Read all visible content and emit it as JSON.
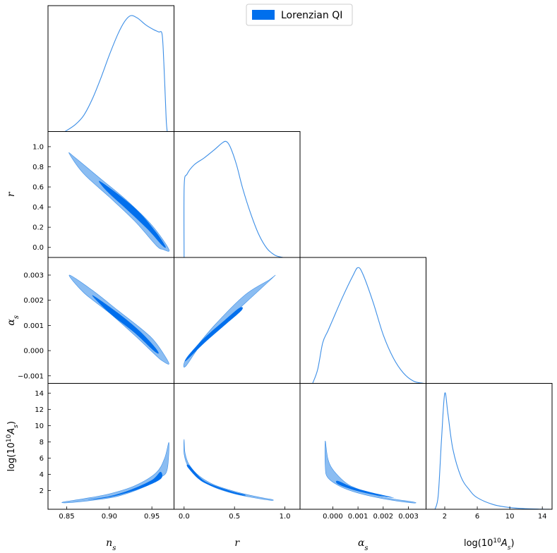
{
  "legend": {
    "label": "Lorenzian QI",
    "color": "#006FED",
    "location": "upper center"
  },
  "colors": {
    "line": "#3C8EE6",
    "contour_outer": "#8BBDF2",
    "contour_inner": "#006FED",
    "frame": "#000000"
  },
  "parameters": [
    {
      "key": "ns",
      "label_main": "n",
      "label_sub": "s"
    },
    {
      "key": "r",
      "label_main": "r",
      "label_sub": ""
    },
    {
      "key": "as",
      "label_main": "α",
      "label_sub": "s"
    },
    {
      "key": "lnA",
      "label_pre": "log(10",
      "label_sup": "10",
      "label_mid": "A",
      "label_sub": "s",
      "label_post": ")"
    }
  ],
  "chart_data": {
    "type": "triangle",
    "ranges": {
      "ns": [
        0.828,
        0.976
      ],
      "r": [
        -0.1,
        1.15
      ],
      "as": [
        -0.0013,
        0.0037
      ],
      "lnA": [
        -0.3,
        15.2
      ]
    },
    "ticks": {
      "ns": {
        "values": [
          0.85,
          0.9,
          0.95
        ],
        "labels": [
          "0.85",
          "0.90",
          "0.95"
        ]
      },
      "r": {
        "values": [
          0.0,
          0.5,
          1.0
        ],
        "labels": [
          "0.0",
          "0.5",
          "1.0"
        ]
      },
      "r_y": {
        "values": [
          0.0,
          0.2,
          0.4,
          0.6,
          0.8,
          1.0
        ],
        "labels": [
          "0.0",
          "0.2",
          "0.4",
          "0.6",
          "0.8",
          "1.0"
        ]
      },
      "as": {
        "values": [
          0.0,
          0.001,
          0.002,
          0.003
        ],
        "labels": [
          "0.000",
          "0.001",
          "0.002",
          "0.003"
        ]
      },
      "as_y": {
        "values": [
          -0.001,
          0.0,
          0.001,
          0.002,
          0.003
        ],
        "labels": [
          "−0.001",
          "0.000",
          "0.001",
          "0.002",
          "0.003"
        ]
      },
      "lnA": {
        "values": [
          2,
          6,
          10,
          14
        ],
        "labels": [
          "2",
          "6",
          "10",
          "14"
        ]
      },
      "lnA_y": {
        "values": [
          2,
          4,
          6,
          8,
          10,
          12,
          14
        ],
        "labels": [
          "2",
          "4",
          "6",
          "8",
          "10",
          "12",
          "14"
        ]
      }
    },
    "marginals": {
      "ns": [
        [
          0.848,
          0
        ],
        [
          0.86,
          0.06
        ],
        [
          0.87,
          0.14
        ],
        [
          0.88,
          0.28
        ],
        [
          0.89,
          0.46
        ],
        [
          0.9,
          0.66
        ],
        [
          0.91,
          0.84
        ],
        [
          0.918,
          0.95
        ],
        [
          0.925,
          1.0
        ],
        [
          0.933,
          0.98
        ],
        [
          0.943,
          0.92
        ],
        [
          0.952,
          0.88
        ],
        [
          0.958,
          0.86
        ],
        [
          0.962,
          0.84
        ],
        [
          0.964,
          0.6
        ],
        [
          0.966,
          0.25
        ],
        [
          0.967,
          0.08
        ],
        [
          0.968,
          0
        ]
      ],
      "r": [
        [
          0.0,
          0
        ],
        [
          0.001,
          0.62
        ],
        [
          0.03,
          0.72
        ],
        [
          0.1,
          0.8
        ],
        [
          0.2,
          0.86
        ],
        [
          0.3,
          0.93
        ],
        [
          0.38,
          0.99
        ],
        [
          0.42,
          1.0
        ],
        [
          0.46,
          0.95
        ],
        [
          0.52,
          0.8
        ],
        [
          0.58,
          0.6
        ],
        [
          0.66,
          0.38
        ],
        [
          0.74,
          0.2
        ],
        [
          0.82,
          0.08
        ],
        [
          0.9,
          0.02
        ],
        [
          0.98,
          0
        ]
      ],
      "as": [
        [
          -0.0008,
          0
        ],
        [
          -0.0006,
          0.12
        ],
        [
          -0.0004,
          0.35
        ],
        [
          -0.0002,
          0.45
        ],
        [
          0.0,
          0.55
        ],
        [
          0.0004,
          0.75
        ],
        [
          0.0008,
          0.93
        ],
        [
          0.001,
          1.0
        ],
        [
          0.0012,
          0.94
        ],
        [
          0.0016,
          0.7
        ],
        [
          0.002,
          0.42
        ],
        [
          0.0024,
          0.22
        ],
        [
          0.0028,
          0.09
        ],
        [
          0.0032,
          0.02
        ],
        [
          0.0036,
          0
        ]
      ],
      "lnA": [
        [
          0.8,
          0
        ],
        [
          1.2,
          0.12
        ],
        [
          1.6,
          0.6
        ],
        [
          2.0,
          1.0
        ],
        [
          2.4,
          0.82
        ],
        [
          3.0,
          0.52
        ],
        [
          4.0,
          0.28
        ],
        [
          5.0,
          0.17
        ],
        [
          6.0,
          0.1
        ],
        [
          8.0,
          0.04
        ],
        [
          10.0,
          0.015
        ],
        [
          12.0,
          0.005
        ],
        [
          14.0,
          0.001
        ],
        [
          15.0,
          0
        ]
      ]
    },
    "contours": [
      {
        "x": "ns",
        "y": "r",
        "outer": [
          [
            0.853,
            0.93
          ],
          [
            0.86,
            0.89
          ],
          [
            0.89,
            0.68
          ],
          [
            0.92,
            0.47
          ],
          [
            0.95,
            0.22
          ],
          [
            0.97,
            -0.02
          ],
          [
            0.963,
            -0.02
          ],
          [
            0.955,
            0.02
          ],
          [
            0.93,
            0.26
          ],
          [
            0.9,
            0.5
          ],
          [
            0.87,
            0.73
          ]
        ],
        "inner": [
          [
            0.888,
            0.66
          ],
          [
            0.91,
            0.53
          ],
          [
            0.935,
            0.35
          ],
          [
            0.955,
            0.15
          ],
          [
            0.966,
            0.01
          ],
          [
            0.962,
            0.02
          ],
          [
            0.945,
            0.18
          ],
          [
            0.92,
            0.38
          ],
          [
            0.898,
            0.55
          ]
        ]
      },
      {
        "x": "ns",
        "y": "as",
        "outer": [
          [
            0.853,
            0.003
          ],
          [
            0.88,
            0.0024
          ],
          [
            0.91,
            0.0016
          ],
          [
            0.94,
            0.0008
          ],
          [
            0.955,
            0.0003
          ],
          [
            0.97,
            -0.0005
          ],
          [
            0.962,
            -0.0004
          ],
          [
            0.955,
            -0.0002
          ],
          [
            0.93,
            0.0006
          ],
          [
            0.9,
            0.0015
          ],
          [
            0.87,
            0.0023
          ]
        ],
        "inner": [
          [
            0.88,
            0.0022
          ],
          [
            0.91,
            0.0015
          ],
          [
            0.935,
            0.0008
          ],
          [
            0.952,
            0.0002
          ],
          [
            0.958,
            -0.0001
          ],
          [
            0.952,
            0.0
          ],
          [
            0.93,
            0.0007
          ],
          [
            0.9,
            0.0015
          ]
        ]
      },
      {
        "x": "r",
        "y": "as",
        "outer": [
          [
            0.0,
            -0.0005
          ],
          [
            0.02,
            -0.0006
          ],
          [
            0.2,
            0.0004
          ],
          [
            0.5,
            0.0015
          ],
          [
            0.88,
            0.0029
          ],
          [
            0.84,
            0.0028
          ],
          [
            0.6,
            0.0022
          ],
          [
            0.3,
            0.001
          ],
          [
            0.05,
            -0.0002
          ]
        ],
        "inner": [
          [
            0.02,
            -0.0004
          ],
          [
            0.2,
            0.0003
          ],
          [
            0.4,
            0.001
          ],
          [
            0.57,
            0.0016
          ],
          [
            0.55,
            0.0017
          ],
          [
            0.4,
            0.0012
          ],
          [
            0.2,
            0.0005
          ],
          [
            0.04,
            -0.0002
          ]
        ]
      },
      {
        "x": "ns",
        "y": "lnA",
        "outer": [
          [
            0.846,
            0.6
          ],
          [
            0.87,
            1.0
          ],
          [
            0.9,
            1.6
          ],
          [
            0.93,
            2.6
          ],
          [
            0.955,
            4.2
          ],
          [
            0.965,
            6.0
          ],
          [
            0.97,
            7.9
          ],
          [
            0.968,
            4.6
          ],
          [
            0.96,
            3.6
          ],
          [
            0.94,
            2.4
          ],
          [
            0.91,
            1.3
          ],
          [
            0.88,
            0.8
          ],
          [
            0.85,
            0.5
          ]
        ],
        "inner": [
          [
            0.875,
            0.9
          ],
          [
            0.9,
            1.3
          ],
          [
            0.925,
            2.1
          ],
          [
            0.95,
            3.3
          ],
          [
            0.96,
            4.3
          ],
          [
            0.961,
            3.5
          ],
          [
            0.945,
            2.6
          ],
          [
            0.92,
            1.7
          ],
          [
            0.895,
            1.1
          ]
        ]
      },
      {
        "x": "r",
        "y": "lnA",
        "outer": [
          [
            0.0,
            8.3
          ],
          [
            0.01,
            6.6
          ],
          [
            0.05,
            5.2
          ],
          [
            0.15,
            3.8
          ],
          [
            0.3,
            2.7
          ],
          [
            0.5,
            1.9
          ],
          [
            0.7,
            1.3
          ],
          [
            0.87,
            0.9
          ],
          [
            0.86,
            0.8
          ],
          [
            0.7,
            1.1
          ],
          [
            0.5,
            1.6
          ],
          [
            0.3,
            2.4
          ],
          [
            0.15,
            3.5
          ],
          [
            0.04,
            5.0
          ],
          [
            0.0,
            6.5
          ]
        ],
        "inner": [
          [
            0.05,
            5.1
          ],
          [
            0.2,
            3.2
          ],
          [
            0.45,
            2.0
          ],
          [
            0.6,
            1.5
          ],
          [
            0.58,
            1.4
          ],
          [
            0.42,
            1.9
          ],
          [
            0.18,
            3.1
          ],
          [
            0.04,
            4.8
          ]
        ]
      },
      {
        "x": "as",
        "y": "lnA",
        "outer": [
          [
            -0.0003,
            8.1
          ],
          [
            -0.0002,
            6.0
          ],
          [
            0.0,
            4.6
          ],
          [
            0.0005,
            3.0
          ],
          [
            0.001,
            2.2
          ],
          [
            0.002,
            1.2
          ],
          [
            0.0032,
            0.6
          ],
          [
            0.0031,
            0.5
          ],
          [
            0.002,
            1.0
          ],
          [
            0.001,
            1.7
          ],
          [
            0.0003,
            2.5
          ],
          [
            -0.0002,
            3.6
          ],
          [
            -0.0003,
            5.0
          ]
        ],
        "inner": [
          [
            0.0002,
            3.2
          ],
          [
            0.0008,
            2.4
          ],
          [
            0.0015,
            1.8
          ],
          [
            0.0022,
            1.3
          ],
          [
            0.0024,
            1.1
          ],
          [
            0.0016,
            1.5
          ],
          [
            0.0008,
            2.1
          ],
          [
            0.0002,
            2.8
          ]
        ]
      }
    ]
  }
}
